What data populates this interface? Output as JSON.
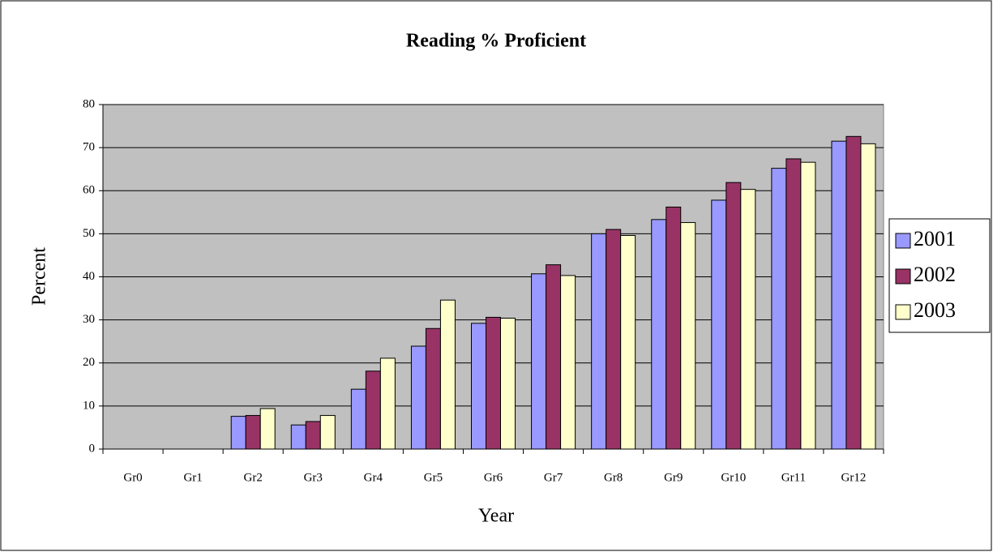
{
  "chart_data": {
    "type": "bar",
    "title": "Reading % Proficient",
    "x_label": "Year",
    "y_label": "Percent",
    "categories": [
      "Gr0",
      "Gr1",
      "Gr2",
      "Gr3",
      "Gr4",
      "Gr5",
      "Gr6",
      "Gr7",
      "Gr8",
      "Gr9",
      "Gr10",
      "Gr11",
      "Gr12"
    ],
    "series": [
      {
        "name": "2001",
        "color": "#9999ff",
        "values": [
          null,
          null,
          7.6,
          5.6,
          13.9,
          23.9,
          29.2,
          40.7,
          50,
          53.3,
          57.8,
          65.2,
          71.5
        ]
      },
      {
        "name": "2002",
        "color": "#993366",
        "values": [
          null,
          null,
          7.8,
          6.4,
          18.1,
          28,
          30.6,
          42.8,
          51,
          56.2,
          61.9,
          67.4,
          72.6
        ]
      },
      {
        "name": "2003",
        "color": "#ffffcc",
        "values": [
          null,
          null,
          9.4,
          7.8,
          21.1,
          34.6,
          30.4,
          40.3,
          49.6,
          52.6,
          60.3,
          66.6,
          70.9
        ]
      }
    ],
    "ylim": [
      0,
      80
    ],
    "yticks": [
      0,
      10,
      20,
      30,
      40,
      50,
      60,
      70,
      80
    ],
    "grid": true,
    "legend": "right",
    "plot_background": "#c0c0c0"
  }
}
